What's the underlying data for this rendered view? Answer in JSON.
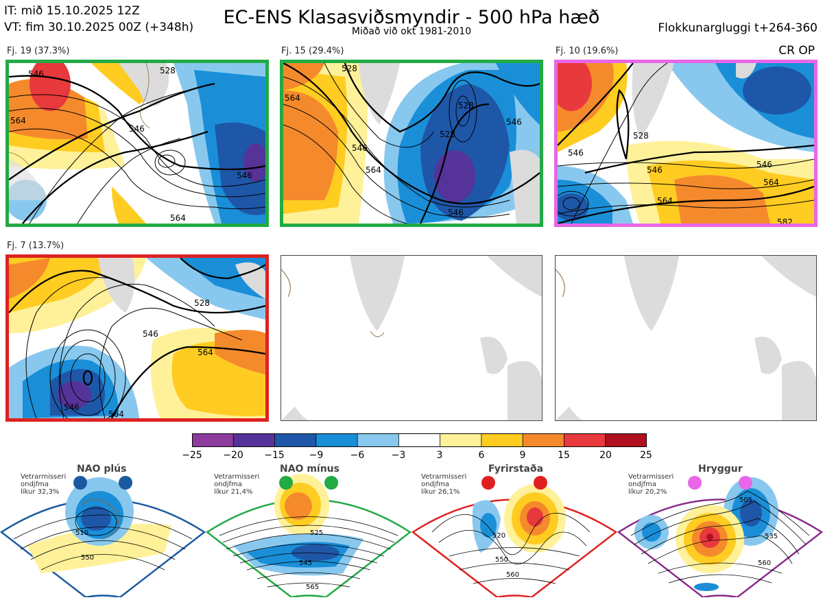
{
  "header": {
    "it": "IT: mið 15.10.2025 12Z",
    "vt": "VT: fim 30.10.2025 00Z  (+348h)",
    "title": "EC-ENS Klasasviðsmyndir - 500 hPa hæð",
    "subtitle": "Miðað við okt 1981-2010",
    "window": "Flokkunargluggi t+264-360",
    "crop": "CR OP"
  },
  "clusters": [
    {
      "label": "Fj. 19 (37.3%)",
      "members": 19,
      "percent": 37.3,
      "border": "#22aa44",
      "contours": [
        "546",
        "564",
        "528",
        "546",
        "546",
        "564"
      ]
    },
    {
      "label": "Fj. 15 (29.4%)",
      "members": 15,
      "percent": 29.4,
      "border": "#22aa44",
      "contours": [
        "528",
        "564",
        "546",
        "564",
        "528",
        "528",
        "546",
        "546"
      ]
    },
    {
      "label": "Fj. 10 (19.6%)",
      "members": 10,
      "percent": 19.6,
      "border": "#e866e8",
      "contours": [
        "528",
        "546",
        "546",
        "546",
        "564",
        "564",
        "582"
      ]
    },
    {
      "label": "Fj. 7 (13.7%)",
      "members": 7,
      "percent": 13.7,
      "border": "#dd2222",
      "contours": [
        "528",
        "546",
        "546",
        "564",
        "564"
      ]
    }
  ],
  "colorbar": {
    "ticks": [
      "−25",
      "−20",
      "−15",
      "−9",
      "−6",
      "−3",
      "3",
      "6",
      "9",
      "15",
      "20",
      "25"
    ],
    "colors": [
      "#8c3c9c",
      "#553399",
      "#1f57a8",
      "#1a8fd8",
      "#88c8ee",
      "#ffffff",
      "#fff199",
      "#ffcc22",
      "#f58a2c",
      "#e8393c",
      "#b01020"
    ]
  },
  "regimes": [
    {
      "title": "NAO plús",
      "note": [
        "Vetrarmisseri",
        "ondjfma",
        "líkur 32,3%"
      ],
      "color": "#1b5aa0",
      "contours": [
        "510",
        "550"
      ]
    },
    {
      "title": "NAO mínus",
      "note": [
        "Vetrarmisseri",
        "ondjfma",
        "líkur 21,4%"
      ],
      "color": "#22aa44",
      "contours": [
        "525",
        "545",
        "565"
      ]
    },
    {
      "title": "Fyrirstaða",
      "note": [
        "Vetrarmisseri",
        "ondjfma",
        "líkur 26,1%"
      ],
      "color": "#e02020",
      "contours": [
        "520",
        "550",
        "560"
      ]
    },
    {
      "title": "Hryggur",
      "note": [
        "Vetrarmisseri",
        "ondjfma",
        "líkur 20,2%"
      ],
      "color": "#e866e8",
      "contours": [
        "505",
        "535",
        "560"
      ]
    }
  ]
}
